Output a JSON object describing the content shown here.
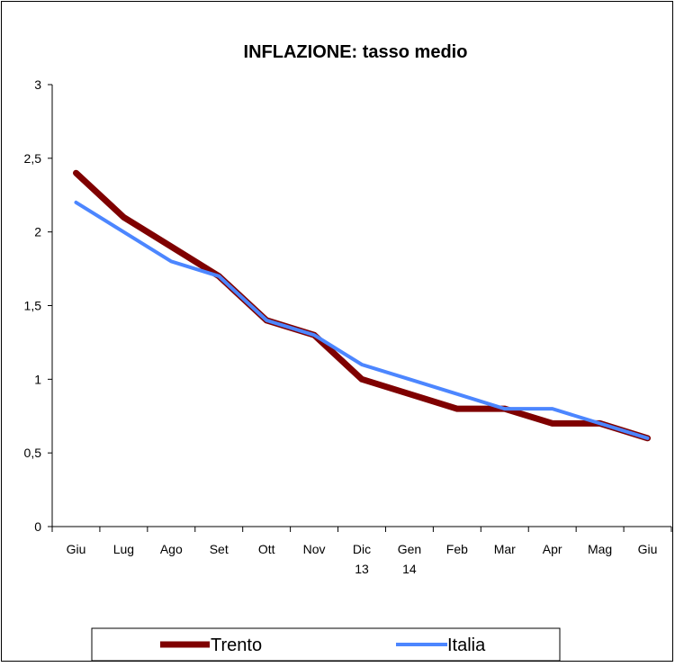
{
  "chart_data": {
    "type": "line",
    "title": "INFLAZIONE: tasso medio",
    "xlabel": "",
    "ylabel": "",
    "categories": [
      [
        "Giu",
        ""
      ],
      [
        "Lug",
        ""
      ],
      [
        "Ago",
        ""
      ],
      [
        "Set",
        ""
      ],
      [
        "Ott",
        ""
      ],
      [
        "Nov",
        ""
      ],
      [
        "Dic",
        "13"
      ],
      [
        "Gen",
        "14"
      ],
      [
        "Feb",
        ""
      ],
      [
        "Mar",
        ""
      ],
      [
        "Apr",
        ""
      ],
      [
        "Mag",
        ""
      ],
      [
        "Giu",
        ""
      ]
    ],
    "ylim": [
      0,
      3
    ],
    "yticks": [
      "0",
      "0,5",
      "1",
      "1,5",
      "2",
      "2,5",
      "3"
    ],
    "grid": false,
    "legend_position": "bottom",
    "series": [
      {
        "name": "Trento",
        "color": "#7f0000",
        "values": [
          2.4,
          2.1,
          1.9,
          1.7,
          1.4,
          1.3,
          1.0,
          0.9,
          0.8,
          0.8,
          0.7,
          0.7,
          0.6
        ]
      },
      {
        "name": "Italia",
        "color": "#4c86ff",
        "values": [
          2.2,
          2.0,
          1.8,
          1.7,
          1.4,
          1.3,
          1.1,
          1.0,
          0.9,
          0.8,
          0.8,
          0.7,
          0.6
        ]
      }
    ]
  }
}
